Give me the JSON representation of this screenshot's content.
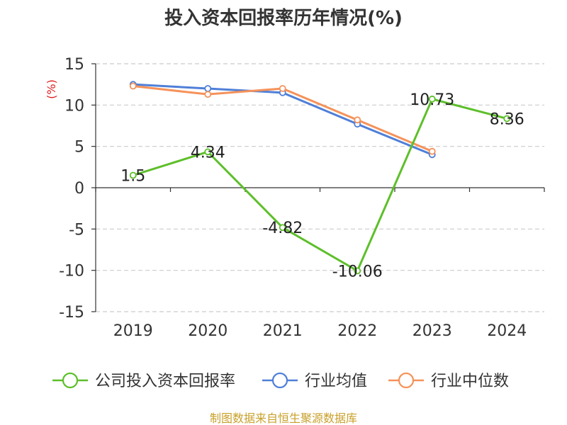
{
  "chart_data": {
    "type": "line",
    "title": "投入资本回报率历年情况(%)",
    "ylabel": "(%)",
    "xlabel": "",
    "categories": [
      "2019",
      "2020",
      "2021",
      "2022",
      "2023",
      "2024"
    ],
    "ylim": [
      -15,
      15
    ],
    "yticks": [
      15,
      10,
      5,
      0,
      -5,
      -10,
      -15
    ],
    "grid": true,
    "legend_position": "bottom",
    "series": [
      {
        "name": "公司投入资本回报率",
        "color": "#5dbf2a",
        "values": [
          1.5,
          4.34,
          -4.82,
          -10.06,
          10.73,
          8.36
        ],
        "labels": [
          "1.5",
          "4.34",
          "-4.82",
          "-10.06",
          "10.73",
          "8.36"
        ]
      },
      {
        "name": "行业均值",
        "color": "#4f7fd8",
        "values": [
          12.5,
          12.0,
          11.5,
          7.7,
          4.0,
          null
        ]
      },
      {
        "name": "行业中位数",
        "color": "#f5925a",
        "values": [
          12.3,
          11.3,
          12.0,
          8.2,
          4.4,
          null
        ]
      }
    ]
  },
  "source": "制图数据来自恒生聚源数据库"
}
